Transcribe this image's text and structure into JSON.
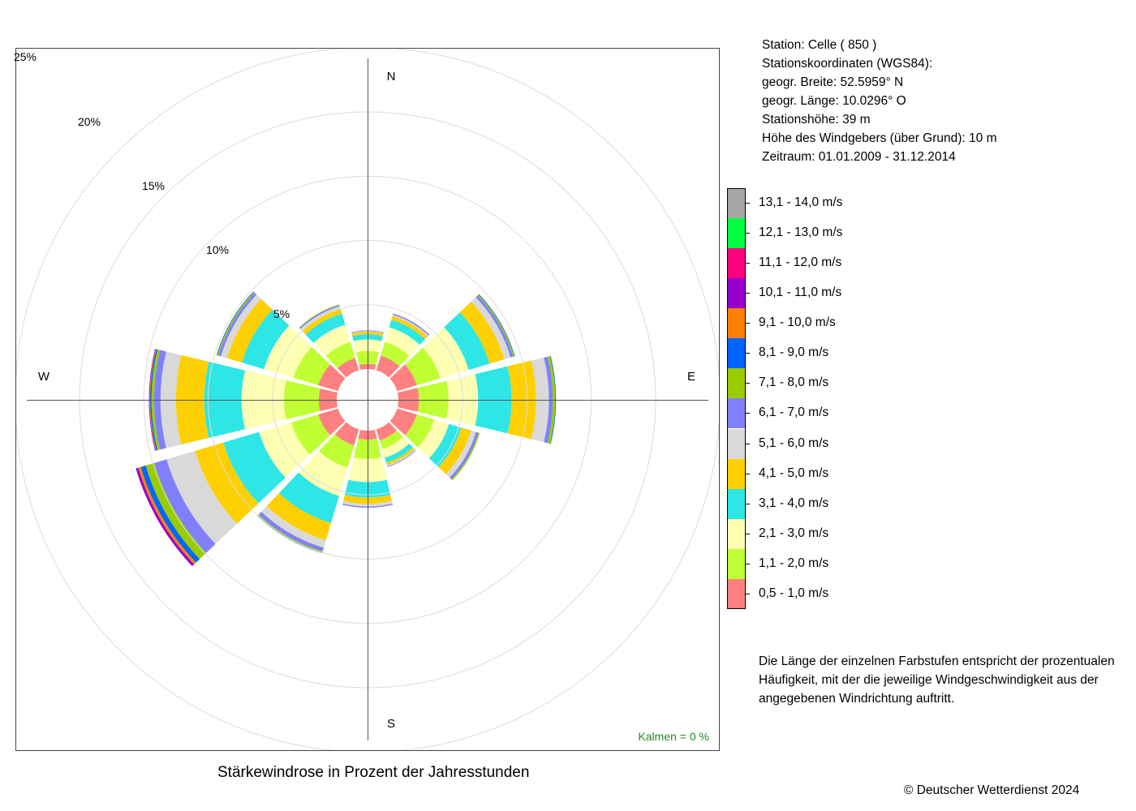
{
  "station": {
    "line1": "Station:  Celle  ( 850 )",
    "line2": "Stationskoordinaten (WGS84):",
    "line3": "geogr. Breite: 52.5959° N",
    "line4": "geogr. Länge: 10.0296° O",
    "line5": "Stationshöhe: 39 m",
    "line6": "Höhe des Windgebers (über Grund): 10 m",
    "line7": "Zeitraum: 01.01.2009 - 31.12.2014"
  },
  "note": {
    "line1": "Die Länge der einzelnen Farbstufen entspricht der prozentualen",
    "line2": "Häufigkeit, mit der die jeweilige Windgeschwindigkeit aus der",
    "line3": "angegebenen Windrichtung auftritt."
  },
  "caption": "Stärkewindrose in Prozent der Jahresstunden",
  "copyright": "© Deutscher Wetterdienst  2024",
  "chart_data": {
    "type": "windrose",
    "title": "Stärkewindrose in Prozent der Jahresstunden",
    "calm_label": "Kalmen  =  0 %",
    "compass": [
      "N",
      "E",
      "S",
      "W"
    ],
    "ring_labels": [
      "5%",
      "10%",
      "15%",
      "20%",
      "25%"
    ],
    "ring_values": [
      5,
      10,
      15,
      20,
      25
    ],
    "directions": [
      0,
      30,
      60,
      90,
      120,
      150,
      180,
      210,
      240,
      270,
      300,
      330
    ],
    "speed_classes": [
      {
        "label": "0,5 - 1,0 m/s",
        "color": "#ff8080"
      },
      {
        "label": "1,1 - 2,0 m/s",
        "color": "#bfff33"
      },
      {
        "label": "2,1 - 3,0 m/s",
        "color": "#ffffb3"
      },
      {
        "label": "3,1 - 4,0 m/s",
        "color": "#2ee6e6"
      },
      {
        "label": "4,1 - 5,0 m/s",
        "color": "#ffd000"
      },
      {
        "label": "5,1 - 6,0 m/s",
        "color": "#d9d9d9"
      },
      {
        "label": "6,1 - 7,0 m/s",
        "color": "#8080ff"
      },
      {
        "label": "7,1 - 8,0 m/s",
        "color": "#99cc00"
      },
      {
        "label": "8,1 - 9,0 m/s",
        "color": "#0066ff"
      },
      {
        "label": "9,1 - 10,0 m/s",
        "color": "#ff8000"
      },
      {
        "label": "10,1 - 11,0 m/s",
        "color": "#9900cc"
      },
      {
        "label": "11,1 - 12,0 m/s",
        "color": "#ff0080"
      },
      {
        "label": "12,1 - 13,0 m/s",
        "color": "#00ff40"
      },
      {
        "label": "13,1 - 14,0 m/s",
        "color": "#a6a6a6"
      }
    ],
    "series": [
      {
        "direction": 0,
        "values": [
          0.4,
          1.0,
          0.9,
          0.4,
          0.2,
          0.05,
          0.05,
          0,
          0,
          0,
          0,
          0,
          0,
          0
        ]
      },
      {
        "direction": 30,
        "values": [
          1.2,
          1.1,
          1.2,
          0.6,
          0.3,
          0.1,
          0.1,
          0,
          0,
          0,
          0,
          0,
          0,
          0
        ]
      },
      {
        "direction": 60,
        "values": [
          1.6,
          1.9,
          2.3,
          1.7,
          1.2,
          0.5,
          0.2,
          0.1,
          0.05,
          0,
          0,
          0,
          0,
          0
        ]
      },
      {
        "direction": 90,
        "values": [
          1.6,
          2.3,
          2.3,
          2.6,
          1.9,
          1.0,
          0.3,
          0.2,
          0.05,
          0,
          0,
          0,
          0,
          0
        ]
      },
      {
        "direction": 120,
        "values": [
          1.6,
          1.4,
          1.2,
          1.0,
          0.8,
          0.4,
          0.2,
          0.1,
          0,
          0,
          0,
          0,
          0,
          0
        ]
      },
      {
        "direction": 150,
        "values": [
          0.9,
          0.7,
          0.7,
          0.4,
          0.2,
          0.1,
          0.05,
          0,
          0,
          0,
          0,
          0,
          0,
          0
        ]
      },
      {
        "direction": 180,
        "values": [
          0.7,
          1.5,
          1.8,
          1.2,
          0.5,
          0.2,
          0.1,
          0,
          0,
          0,
          0,
          0,
          0,
          0
        ]
      },
      {
        "direction": 210,
        "values": [
          1.3,
          1.8,
          2.3,
          2.2,
          1.4,
          0.6,
          0.3,
          0.1,
          0.05,
          0,
          0,
          0,
          0,
          0
        ]
      },
      {
        "direction": 240,
        "values": [
          1.6,
          2.2,
          2.6,
          2.9,
          2.3,
          2.3,
          1.0,
          0.7,
          0.4,
          0.2,
          0.2,
          0,
          0,
          0
        ]
      },
      {
        "direction": 270,
        "values": [
          1.4,
          2.7,
          3.3,
          2.9,
          2.2,
          1.2,
          0.5,
          0.2,
          0.1,
          0.05,
          0.05,
          0,
          0,
          0
        ]
      },
      {
        "direction": 300,
        "values": [
          1.6,
          2.0,
          2.4,
          1.8,
          1.2,
          0.5,
          0.2,
          0.1,
          0.05,
          0,
          0,
          0,
          0,
          0
        ]
      },
      {
        "direction": 330,
        "values": [
          1.0,
          1.3,
          1.4,
          0.9,
          0.4,
          0.2,
          0.1,
          0.05,
          0,
          0,
          0,
          0,
          0,
          0
        ]
      }
    ]
  }
}
